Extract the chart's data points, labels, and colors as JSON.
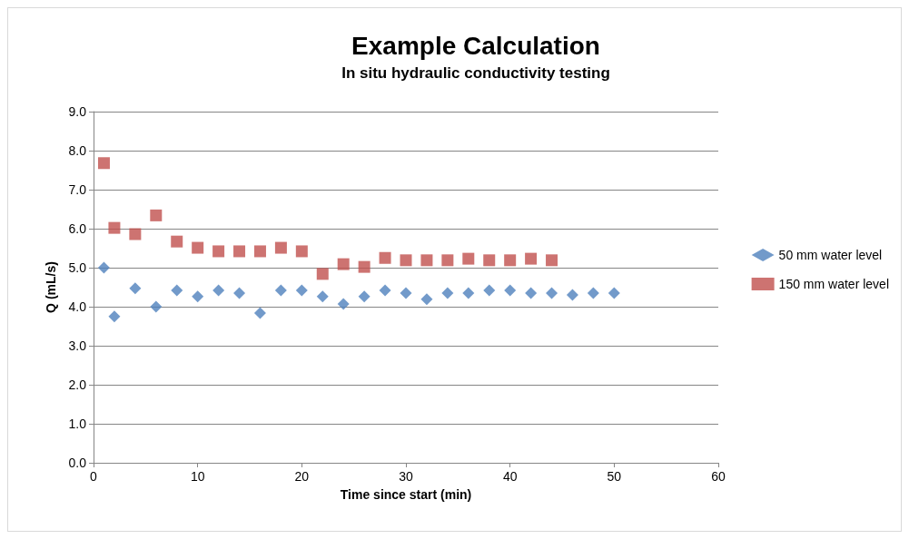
{
  "chart_data": {
    "type": "scatter",
    "title": "Example Calculation",
    "subtitle": "In situ hydraulic conductivity testing",
    "xlabel": "Time since start (min)",
    "ylabel": "Q (mL/s)",
    "xlim": [
      0,
      60
    ],
    "xticks": [
      0,
      10,
      20,
      30,
      40,
      50,
      60
    ],
    "ylim": [
      0,
      9
    ],
    "yticks": [
      {
        "value": 0,
        "label": "0.0"
      },
      {
        "value": 1,
        "label": "1.0"
      },
      {
        "value": 2,
        "label": "2.0"
      },
      {
        "value": 3,
        "label": "3.0"
      },
      {
        "value": 4,
        "label": "4.0"
      },
      {
        "value": 5,
        "label": "5.0"
      },
      {
        "value": 6,
        "label": "6.0"
      },
      {
        "value": 7,
        "label": "7.0"
      },
      {
        "value": 8,
        "label": "8.0"
      },
      {
        "value": 9,
        "label": "9.0"
      }
    ],
    "grid": "y",
    "legend": "right",
    "series": [
      {
        "name": "50 mm water level",
        "color": "#4f81bd",
        "marker": "diamond",
        "x": [
          1,
          2,
          4,
          6,
          8,
          10,
          12,
          14,
          16,
          18,
          20,
          22,
          24,
          26,
          28,
          30,
          32,
          34,
          36,
          38,
          40,
          42,
          44,
          46,
          48,
          50
        ],
        "values": [
          5.0,
          3.75,
          4.47,
          4.0,
          4.42,
          4.26,
          4.42,
          4.35,
          3.84,
          4.42,
          4.42,
          4.26,
          4.07,
          4.26,
          4.42,
          4.35,
          4.19,
          4.35,
          4.35,
          4.42,
          4.42,
          4.35,
          4.35,
          4.3,
          4.35,
          4.35
        ]
      },
      {
        "name": "150 mm water level",
        "color": "#c0504d",
        "marker": "square",
        "x": [
          1,
          2,
          4,
          6,
          8,
          10,
          12,
          14,
          16,
          18,
          20,
          22,
          24,
          26,
          28,
          30,
          32,
          34,
          36,
          38,
          40,
          42,
          44
        ],
        "values": [
          7.68,
          6.02,
          5.86,
          6.34,
          5.67,
          5.51,
          5.42,
          5.42,
          5.42,
          5.51,
          5.42,
          4.84,
          5.09,
          5.02,
          5.25,
          5.19,
          5.19,
          5.19,
          5.23,
          5.19,
          5.19,
          5.23,
          5.19
        ]
      }
    ]
  }
}
